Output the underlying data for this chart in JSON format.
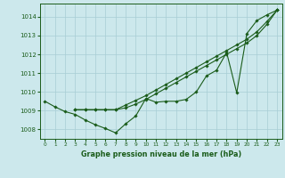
{
  "background_color": "#cce8ec",
  "plot_bg_color": "#cce8ec",
  "grid_color": "#a8cdd4",
  "line_color": "#1a5c1a",
  "marker_color": "#1a5c1a",
  "xlabel": "Graphe pression niveau de la mer (hPa)",
  "xlim": [
    -0.5,
    23.5
  ],
  "ylim": [
    1007.5,
    1014.7
  ],
  "yticks": [
    1008,
    1009,
    1010,
    1011,
    1012,
    1013,
    1014
  ],
  "xticks": [
    0,
    1,
    2,
    3,
    4,
    5,
    6,
    7,
    8,
    9,
    10,
    11,
    12,
    13,
    14,
    15,
    16,
    17,
    18,
    19,
    20,
    21,
    22,
    23
  ],
  "series1_x": [
    0,
    1,
    2,
    3,
    4,
    5,
    6,
    7,
    8,
    9,
    10,
    11,
    12,
    13,
    14,
    15,
    16,
    17,
    18,
    19,
    20,
    21,
    22,
    23
  ],
  "series1_y": [
    1009.5,
    1009.2,
    1008.95,
    1008.8,
    1008.5,
    1008.25,
    1008.05,
    1007.82,
    1008.3,
    1008.72,
    1009.65,
    1009.45,
    1009.5,
    1009.5,
    1009.6,
    1010.0,
    1010.85,
    1011.15,
    1012.1,
    1009.95,
    1013.1,
    1013.8,
    1014.1,
    1014.35
  ],
  "series2_x": [
    3,
    4,
    5,
    6,
    7,
    8,
    9,
    10,
    11,
    12,
    13,
    14,
    15,
    16,
    17,
    18,
    19,
    20,
    21,
    22,
    23
  ],
  "series2_y": [
    1009.05,
    1009.05,
    1009.05,
    1009.05,
    1009.05,
    1009.3,
    1009.55,
    1009.8,
    1010.1,
    1010.4,
    1010.7,
    1011.0,
    1011.3,
    1011.6,
    1011.9,
    1012.2,
    1012.5,
    1012.8,
    1013.2,
    1013.75,
    1014.35
  ],
  "series3_x": [
    3,
    4,
    5,
    6,
    7,
    8,
    9,
    10,
    11,
    12,
    13,
    14,
    15,
    16,
    17,
    18,
    19,
    20,
    21,
    22,
    23
  ],
  "series3_y": [
    1009.05,
    1009.05,
    1009.05,
    1009.05,
    1009.05,
    1009.15,
    1009.35,
    1009.6,
    1009.9,
    1010.2,
    1010.5,
    1010.8,
    1011.1,
    1011.4,
    1011.7,
    1012.0,
    1012.3,
    1012.6,
    1013.0,
    1013.6,
    1014.35
  ]
}
